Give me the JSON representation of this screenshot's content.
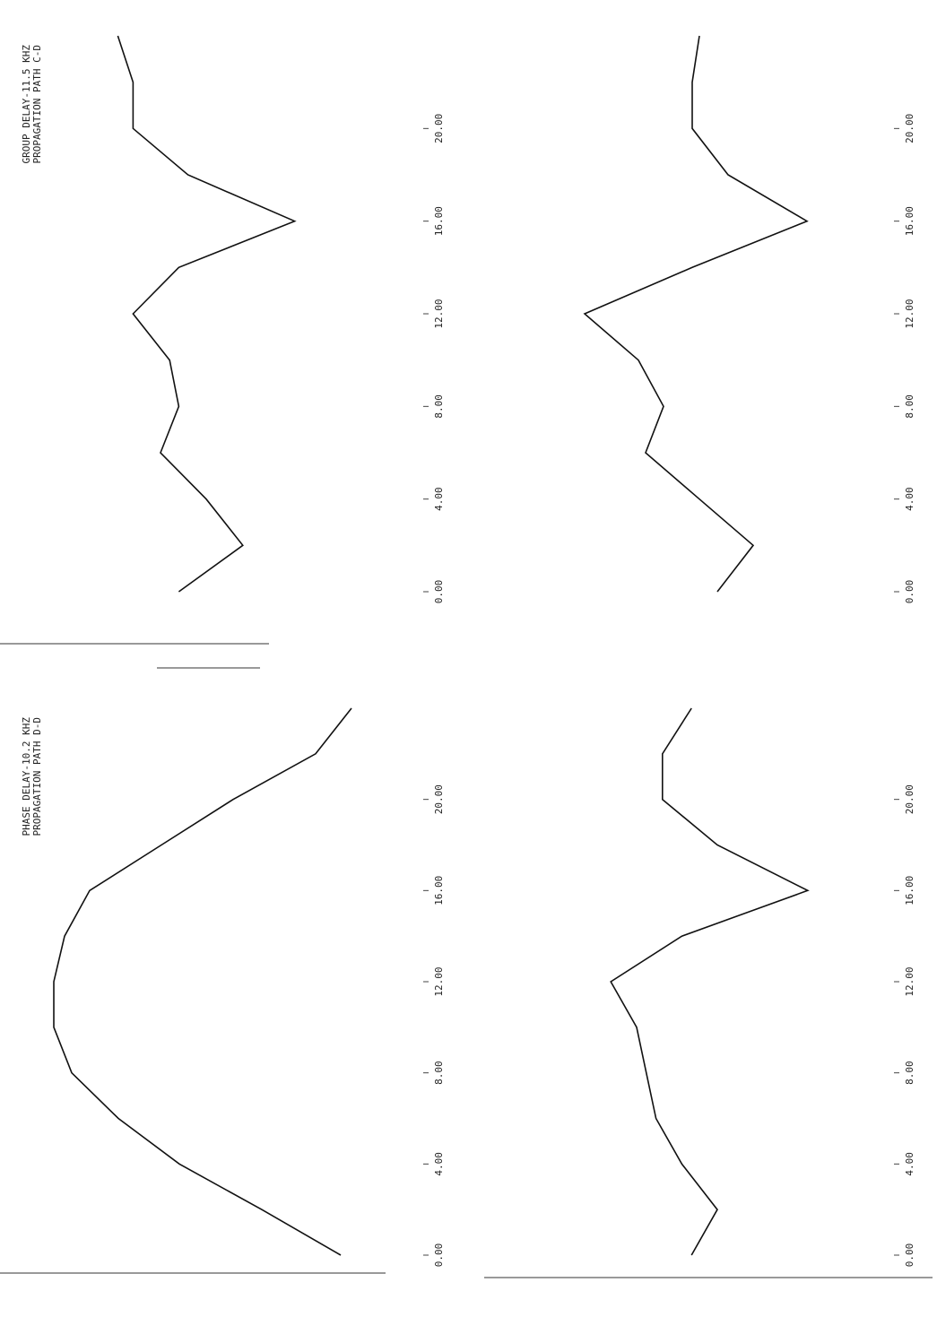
{
  "chart_data": [
    {
      "type": "line",
      "title": "GROUP DELAY-11.5 KHZ",
      "subtitle": "PROPAGATION PATH C-D",
      "x": [
        0,
        2,
        4,
        6,
        8,
        10,
        12,
        14,
        16,
        18,
        20,
        22,
        24
      ],
      "values": [
        41,
        62,
        50,
        35,
        41,
        38,
        26,
        41,
        79,
        44,
        26,
        26,
        21
      ],
      "color": "#111111",
      "xlim": [
        0,
        24
      ],
      "ylim": [
        0,
        100
      ],
      "xticks": [
        {
          "value": 0,
          "label": "0.00"
        },
        {
          "value": 4,
          "label": "4.00"
        },
        {
          "value": 8,
          "label": "8.00"
        },
        {
          "value": 12,
          "label": "12.00"
        },
        {
          "value": 16,
          "label": "16.00"
        },
        {
          "value": 20,
          "label": "20.00"
        }
      ]
    },
    {
      "type": "line",
      "title": "PHASE DELAY-10.2 KHZ",
      "subtitle": "PROPAGATION PATH D-D",
      "x": [
        0,
        2,
        4,
        6,
        8,
        10,
        12,
        14,
        16,
        18,
        20,
        22,
        24
      ],
      "values": [
        90,
        68,
        45,
        28,
        15,
        10,
        10,
        13,
        20,
        40,
        60,
        83,
        93
      ],
      "color": "#111111",
      "xlim": [
        0,
        24
      ],
      "ylim": [
        0,
        100
      ],
      "xticks": [
        {
          "value": 0,
          "label": "0.00"
        },
        {
          "value": 4,
          "label": "4.00"
        },
        {
          "value": 8,
          "label": "8.00"
        },
        {
          "value": 12,
          "label": "12.00"
        },
        {
          "value": 16,
          "label": "16.00"
        },
        {
          "value": 20,
          "label": "20.00"
        }
      ]
    },
    {
      "type": "line",
      "x": [
        0,
        2,
        4,
        6,
        8,
        10,
        12,
        14,
        16,
        18,
        20,
        22,
        24
      ],
      "values": [
        55,
        65,
        50,
        35,
        40,
        33,
        18,
        48,
        80,
        58,
        48,
        48,
        50
      ],
      "color": "#111111",
      "xlim": [
        0,
        24
      ],
      "ylim": [
        0,
        100
      ],
      "xticks": [
        {
          "value": 0,
          "label": "0.00"
        },
        {
          "value": 4,
          "label": "4.00"
        },
        {
          "value": 8,
          "label": "8.00"
        },
        {
          "value": 12,
          "label": "12.00"
        },
        {
          "value": 16,
          "label": "16.00"
        },
        {
          "value": 20,
          "label": "20.00"
        }
      ]
    },
    {
      "type": "line",
      "x": [
        0,
        2,
        4,
        6,
        8,
        10,
        12,
        14,
        16,
        18,
        20,
        22,
        24
      ],
      "values": [
        42,
        50,
        39,
        31,
        28,
        25,
        17,
        39,
        78,
        50,
        33,
        33,
        42
      ],
      "color": "#111111",
      "xlim": [
        0,
        24
      ],
      "ylim": [
        0,
        100
      ],
      "xticks": [
        {
          "value": 0,
          "label": "0.00"
        },
        {
          "value": 4,
          "label": "4.00"
        },
        {
          "value": 8,
          "label": "8.00"
        },
        {
          "value": 12,
          "label": "12.00"
        },
        {
          "value": 16,
          "label": "16.00"
        },
        {
          "value": 20,
          "label": "20.00"
        }
      ]
    }
  ]
}
